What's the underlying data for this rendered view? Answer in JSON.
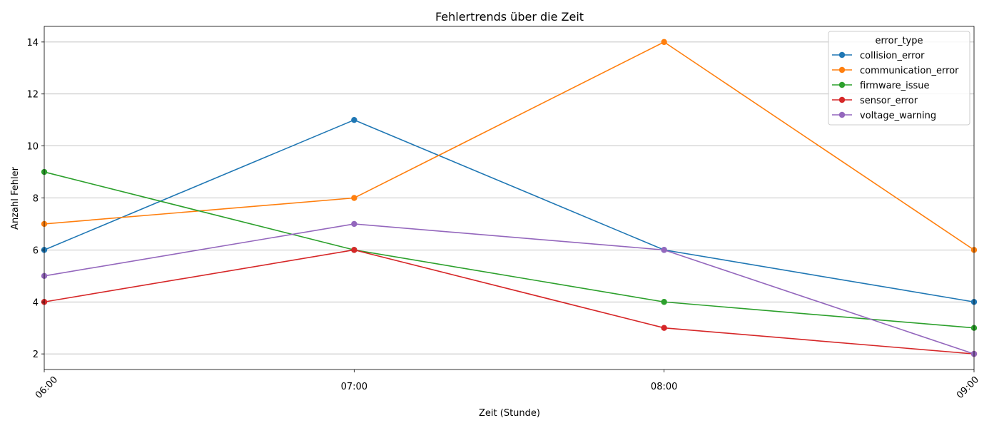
{
  "chart_data": {
    "type": "line",
    "title": "Fehlertrends über die Zeit",
    "xlabel": "Zeit (Stunde)",
    "ylabel": "Anzahl Fehler",
    "categories": [
      "06:00",
      "07:00",
      "08:00",
      "09:00"
    ],
    "ylim": [
      1.4,
      14.6
    ],
    "yticks": [
      2,
      4,
      6,
      8,
      10,
      12,
      14
    ],
    "grid": "y-axis only",
    "legend": {
      "title": "error_type",
      "placement": "top-right"
    },
    "series": [
      {
        "name": "collision_error",
        "color": "#1f77b4",
        "values": [
          6,
          11,
          6,
          4
        ]
      },
      {
        "name": "communication_error",
        "color": "#ff7f0e",
        "values": [
          7,
          8,
          14,
          6
        ]
      },
      {
        "name": "firmware_issue",
        "color": "#2ca02c",
        "values": [
          9,
          6,
          4,
          3
        ]
      },
      {
        "name": "sensor_error",
        "color": "#d62728",
        "values": [
          4,
          6,
          3,
          2
        ]
      },
      {
        "name": "voltage_warning",
        "color": "#9467bd",
        "values": [
          5,
          7,
          6,
          2
        ]
      }
    ]
  }
}
